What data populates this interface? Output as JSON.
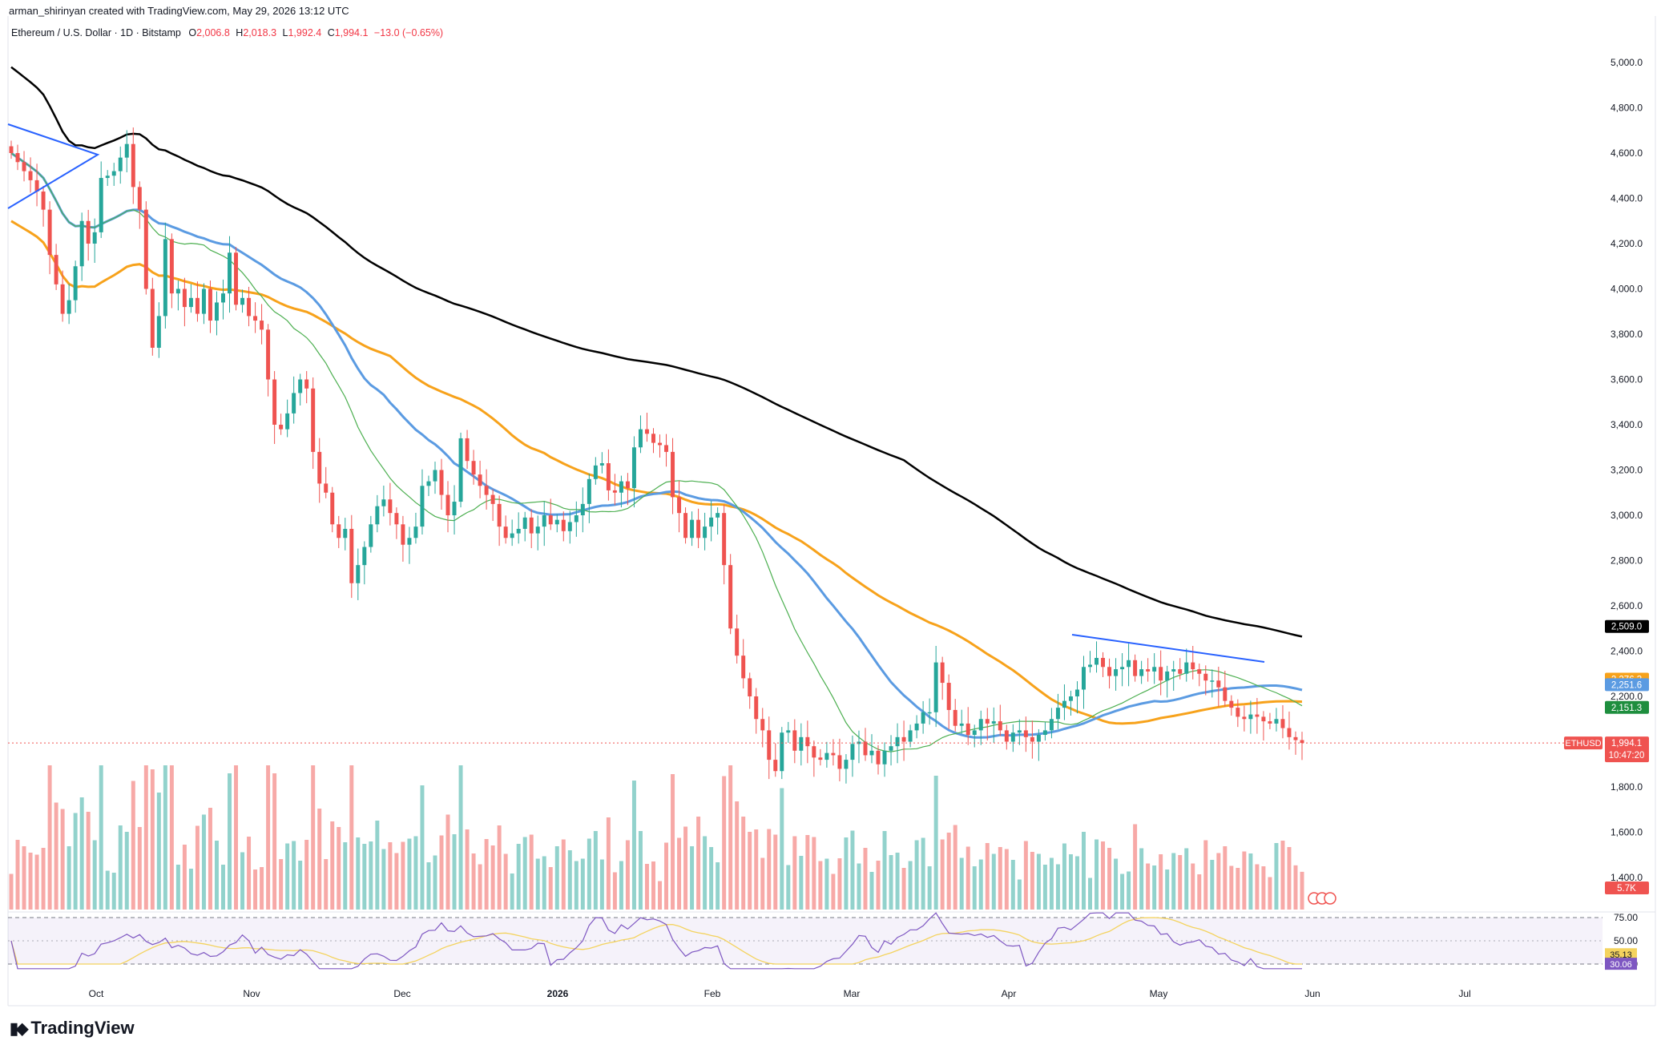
{
  "header": {
    "credit": "arman_shirinyan created with TradingView.com, May 29, 2026 13:12 UTC",
    "symbol": "Ethereum / U.S. Dollar · 1D · Bitstamp",
    "ohlc": {
      "o_label": "O",
      "o": "2,006.8",
      "h_label": "H",
      "h": "2,018.3",
      "l_label": "L",
      "l": "1,992.4",
      "c_label": "C",
      "c": "1,994.1",
      "change": "−13.0 (−0.65%)"
    }
  },
  "brand": {
    "name": "TradingView",
    "logo_icon": "tradingview-logo-icon"
  },
  "colors": {
    "up": "#26a69a",
    "down": "#ef5350",
    "ma_black": "#000000",
    "ma_orange": "#f7a21b",
    "ma_blue": "#5b9be2",
    "ma_green": "#4caf50",
    "rsi": "#7e57c2",
    "rsi_ma": "#f4d35e",
    "trendline": "#2962ff"
  },
  "chart_data": {
    "type": "candlestick",
    "price_axis": {
      "ticks": [
        "5,000.0",
        "4,800.0",
        "4,600.0",
        "4,400.0",
        "4,200.0",
        "4,000.0",
        "3,800.0",
        "3,600.0",
        "3,400.0",
        "3,200.0",
        "3,000.0",
        "2,800.0",
        "2,600.0",
        "2,400.0",
        "2,200.0",
        "1,800.0",
        "1,600.0",
        "1,400.0"
      ],
      "range": [
        1300,
        5100
      ]
    },
    "time_axis": {
      "labels": [
        "Oct",
        "Nov",
        "Dec",
        "2026",
        "Feb",
        "Mar",
        "Apr",
        "May",
        "Jun",
        "Jul"
      ]
    },
    "price_tags": [
      {
        "label": "2,509.0",
        "value": 2509,
        "color": "#000000"
      },
      {
        "label": "2,276.3",
        "value": 2276.3,
        "color": "#f7a21b"
      },
      {
        "label": "2,251.6",
        "value": 2251.6,
        "color": "#5b9be2"
      },
      {
        "label": "2,151.3",
        "value": 2151.3,
        "color": "#1e8e3e"
      }
    ],
    "last_price": {
      "symbol": "ETHUSD",
      "price": "1,994.1",
      "countdown": "10:47:20",
      "value": 1994.1
    },
    "volume_last": "5.7K",
    "rsi": {
      "ticks": [
        "75.00",
        "50.00",
        "25.00"
      ],
      "value_label": "35.13",
      "ma_label": "30.06",
      "value": 35.13,
      "ma": 30.06
    },
    "closes": [
      4600,
      4560,
      4520,
      4480,
      4430,
      4350,
      4150,
      4020,
      3890,
      3950,
      4100,
      4300,
      4200,
      4250,
      4490,
      4500,
      4520,
      4580,
      4640,
      4450,
      4350,
      4000,
      3740,
      3880,
      4220,
      3980,
      4000,
      3920,
      3960,
      3890,
      4000,
      3860,
      3940,
      3980,
      4160,
      3930,
      3960,
      3880,
      3860,
      3820,
      3600,
      3400,
      3380,
      3450,
      3540,
      3600,
      3560,
      3280,
      3140,
      3100,
      2960,
      2900,
      2940,
      2700,
      2780,
      2860,
      2960,
      3040,
      3070,
      3010,
      2960,
      2870,
      2900,
      2950,
      3130,
      3150,
      3200,
      3090,
      3000,
      3060,
      3340,
      3240,
      3180,
      3130,
      3090,
      3050,
      2950,
      2900,
      2920,
      2940,
      2990,
      2920,
      2950,
      3000,
      2960,
      2980,
      2930,
      2970,
      3000,
      3050,
      3160,
      3220,
      3230,
      3110,
      3100,
      3150,
      3120,
      3300,
      3380,
      3360,
      3320,
      3310,
      3280,
      3080,
      3010,
      2900,
      2980,
      2900,
      2950,
      2990,
      3010,
      2780,
      2500,
      2380,
      2280,
      2200,
      2100,
      2050,
      1920,
      1870,
      2040,
      2050,
      1960,
      2020,
      1980,
      1930,
      1920,
      1950,
      1940,
      1880,
      1920,
      1990,
      2000,
      1940,
      1960,
      1900,
      1960,
      1980,
      2020,
      2000,
      2050,
      2080,
      2130,
      2130,
      2350,
      2260,
      2140,
      2070,
      2080,
      2030,
      2050,
      2100,
      2080,
      2090,
      2050,
      2000,
      2040,
      2050,
      2020,
      2000,
      2030,
      2050,
      2100,
      2150,
      2180,
      2200,
      2230,
      2330,
      2340,
      2370,
      2330,
      2290,
      2320,
      2330,
      2360,
      2290,
      2320,
      2310,
      2330,
      2270,
      2310,
      2320,
      2300,
      2350,
      2320,
      2300,
      2270,
      2270,
      2240,
      2180,
      2150,
      2110,
      2100,
      2120,
      2110,
      2090,
      2080,
      2100,
      2060,
      2020,
      2007,
      1994.1
    ]
  }
}
